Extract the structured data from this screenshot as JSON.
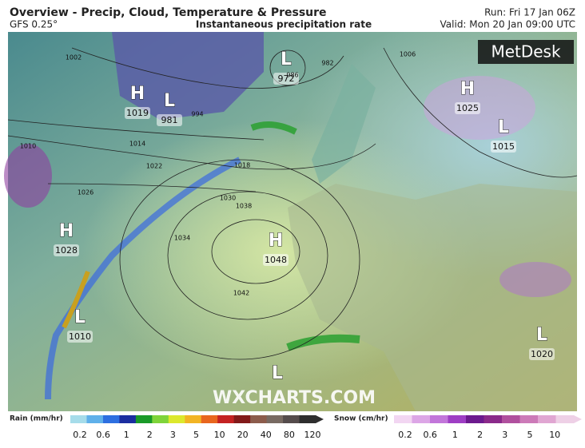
{
  "header": {
    "title": "Overview - Precip, Cloud, Temperature & Pressure",
    "model": "GFS 0.25°",
    "subtitle": "Instantaneous precipitation rate",
    "run": "Run: Fri 17 Jan 06Z",
    "valid": "Valid: Mon 20 Jan 09:00 UTC"
  },
  "logo": "MetDesk",
  "watermark": "WXCHARTS.COM",
  "pressure_centers": [
    {
      "symbol": "H",
      "value": 1019
    },
    {
      "symbol": "L",
      "value": 981
    },
    {
      "symbol": "L",
      "value": 972
    },
    {
      "symbol": "H",
      "value": 1025
    },
    {
      "symbol": "L",
      "value": 1015
    },
    {
      "symbol": "H",
      "value": 1028
    },
    {
      "symbol": "H",
      "value": 1048
    },
    {
      "symbol": "L",
      "value": 1010
    },
    {
      "symbol": "L",
      "value": 1020
    },
    {
      "symbol": "L"
    }
  ],
  "isobar_labels": [
    1002,
    994,
    1014,
    1022,
    1026,
    1030,
    1034,
    1038,
    1042,
    1018,
    1010,
    986,
    982,
    1006
  ],
  "legend": {
    "rain": {
      "title": "Rain (mm/hr)",
      "ticks": [
        0.2,
        0.6,
        1,
        2,
        3,
        5,
        10,
        20,
        40,
        80,
        120
      ],
      "colors": [
        "#a6dcea",
        "#5fb0ea",
        "#2d6fe0",
        "#1b2ea0",
        "#1a9a28",
        "#7fd43a",
        "#dce82c",
        "#f2b424",
        "#e8661e",
        "#c42222",
        "#821a1a",
        "#8c5c4c",
        "#786a62",
        "#554c4c",
        "#2e2e2e"
      ]
    },
    "snow": {
      "title": "Snow (cm/hr)",
      "ticks": [
        0.2,
        0.6,
        1,
        2,
        3,
        5,
        10
      ],
      "colors": [
        "#f2d6f2",
        "#dca6e6",
        "#c276da",
        "#9e3ec4",
        "#6c1a8e",
        "#8a2a8a",
        "#b0509e",
        "#cc7ab8",
        "#e0a6d2",
        "#eed0e6"
      ]
    }
  }
}
